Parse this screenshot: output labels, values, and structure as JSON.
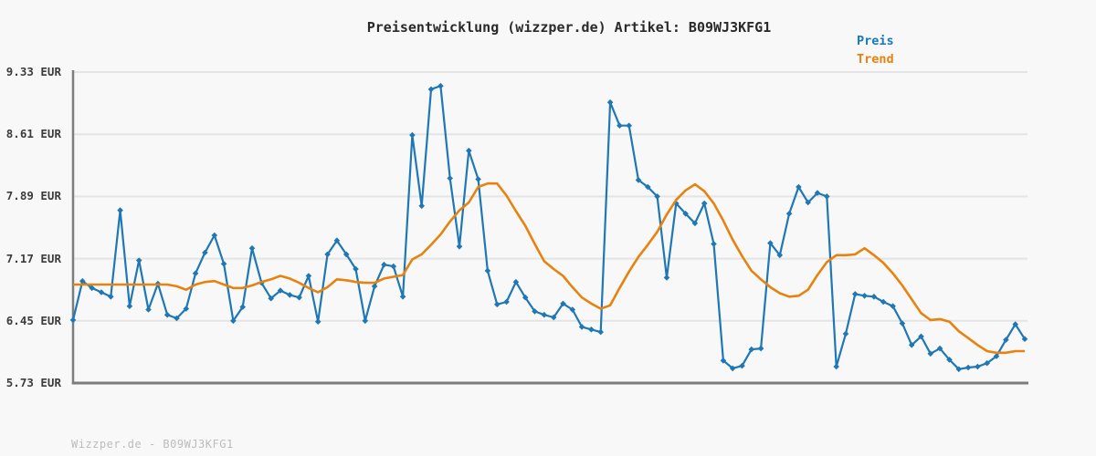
{
  "page": {
    "background": "#f8f8f8"
  },
  "header": {
    "title": "Preisentwicklung (wizzper.de) Artikel: B09WJ3KFG1"
  },
  "footer": {
    "watermark": "Wizzper.de - B09WJ3KFG1"
  },
  "colors": {
    "price_line": "#1f77b4",
    "trend_line": "#e8820e",
    "grid": "#e4e4e4",
    "axis": "#7d7d7d",
    "title_text": "#2a2a2a",
    "tick_text": "#3c3c3c",
    "watermark_text": "#bcbcbc"
  },
  "chart_data": {
    "type": "line",
    "title": "Preisentwicklung (wizzper.de) Artikel: B09WJ3KFG1",
    "xlabel": "",
    "ylabel": "",
    "ylim": [
      5.73,
      9.33
    ],
    "grid": true,
    "x_tick_labels_visible": false,
    "y_ticks": [
      {
        "value": 9.33,
        "label": "9.33 EUR"
      },
      {
        "value": 8.61,
        "label": "8.61 EUR"
      },
      {
        "value": 7.89,
        "label": "7.89 EUR"
      },
      {
        "value": 7.17,
        "label": "7.17 EUR"
      },
      {
        "value": 6.45,
        "label": "6.45 EUR"
      },
      {
        "value": 5.73,
        "label": "5.73 EUR"
      }
    ],
    "legend": {
      "position": "top-right",
      "entries": [
        "Preis",
        "Trend"
      ]
    },
    "series": [
      {
        "name": "Preis",
        "color": "#1f77b4",
        "marker": "diamond",
        "values": [
          6.46,
          6.91,
          6.83,
          6.78,
          6.73,
          7.73,
          6.62,
          7.15,
          6.58,
          6.88,
          6.52,
          6.48,
          6.59,
          7.0,
          7.24,
          7.44,
          7.11,
          6.45,
          6.61,
          7.29,
          6.89,
          6.71,
          6.8,
          6.75,
          6.72,
          6.97,
          6.44,
          7.22,
          7.38,
          7.22,
          7.05,
          6.45,
          6.85,
          7.1,
          7.08,
          6.73,
          8.6,
          7.78,
          9.13,
          9.17,
          8.1,
          7.31,
          8.42,
          8.09,
          7.03,
          6.64,
          6.67,
          6.9,
          6.72,
          6.56,
          6.52,
          6.49,
          6.65,
          6.58,
          6.38,
          6.35,
          6.32,
          8.98,
          8.71,
          8.71,
          8.08,
          8.0,
          7.89,
          6.95,
          7.81,
          7.69,
          7.58,
          7.81,
          7.34,
          5.99,
          5.9,
          5.93,
          6.12,
          6.13,
          7.35,
          7.21,
          7.69,
          8.0,
          7.82,
          7.93,
          7.89,
          5.92,
          6.3,
          6.76,
          6.74,
          6.73,
          6.67,
          6.62,
          6.42,
          6.17,
          6.27,
          6.07,
          6.13,
          6.0,
          5.89,
          5.91,
          5.92,
          5.96,
          6.04,
          6.23,
          6.41,
          6.24
        ]
      },
      {
        "name": "Trend",
        "color": "#e8820e",
        "marker": "none",
        "values": [
          6.87,
          6.87,
          6.87,
          6.87,
          6.87,
          6.87,
          6.87,
          6.87,
          6.87,
          6.87,
          6.87,
          6.85,
          6.81,
          6.87,
          6.9,
          6.91,
          6.87,
          6.83,
          6.83,
          6.86,
          6.9,
          6.93,
          6.97,
          6.94,
          6.89,
          6.83,
          6.78,
          6.84,
          6.93,
          6.92,
          6.9,
          6.89,
          6.89,
          6.94,
          6.96,
          6.98,
          7.16,
          7.22,
          7.33,
          7.45,
          7.6,
          7.73,
          7.82,
          8.0,
          8.04,
          8.04,
          7.9,
          7.72,
          7.55,
          7.34,
          7.14,
          7.05,
          6.97,
          6.84,
          6.72,
          6.65,
          6.59,
          6.63,
          6.83,
          7.02,
          7.19,
          7.33,
          7.48,
          7.68,
          7.85,
          7.96,
          8.03,
          7.95,
          7.81,
          7.61,
          7.39,
          7.2,
          7.03,
          6.93,
          6.84,
          6.77,
          6.73,
          6.74,
          6.81,
          6.98,
          7.13,
          7.21,
          7.21,
          7.22,
          7.29,
          7.21,
          7.12,
          7.0,
          6.86,
          6.7,
          6.54,
          6.46,
          6.47,
          6.44,
          6.33,
          6.25,
          6.17,
          6.1,
          6.08,
          6.08,
          6.1,
          6.1
        ]
      }
    ]
  }
}
